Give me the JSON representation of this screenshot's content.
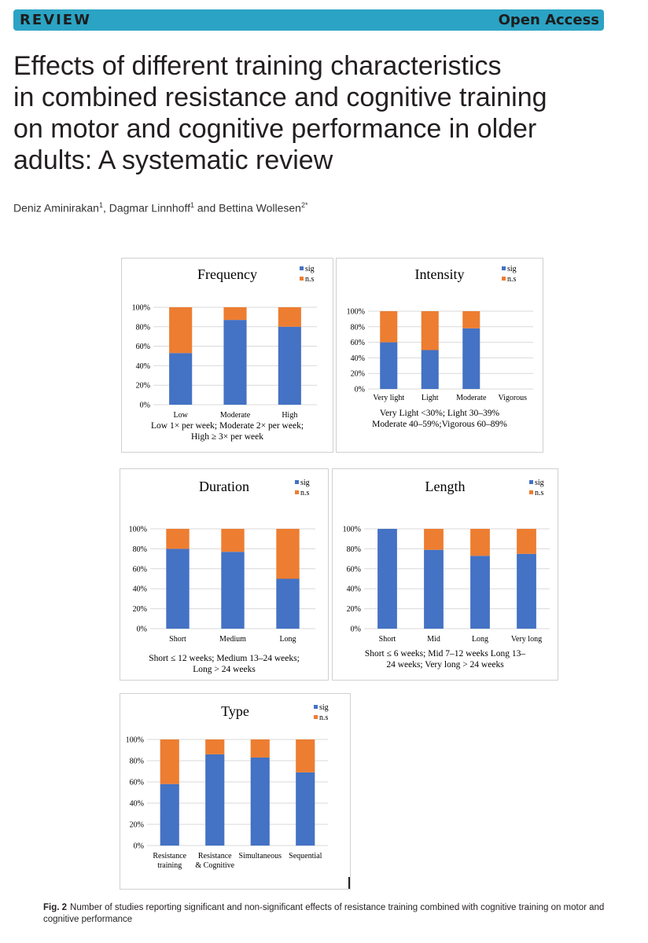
{
  "banner": {
    "label": "REVIEW",
    "access": "Open Access"
  },
  "title_lines": [
    "Effects of different training characteristics",
    "in combined resistance and cognitive training",
    "on motor and cognitive performance in older",
    "adults: A systematic review"
  ],
  "authors": {
    "a1": "Deniz Aminirakan",
    "a1_sup": "1",
    "sep1": ", ",
    "a2": "Dagmar Linnhoff",
    "a2_sup": "1",
    "sep2": " and ",
    "a3": "Bettina Wollesen",
    "a3_sup": "2*"
  },
  "colors": {
    "sig": "#4472c4",
    "ns": "#ed7d31",
    "banner": "#2ba3c4"
  },
  "caption": {
    "label": "Fig. 2",
    "text": "Number of studies reporting significant and non-significant effects of resistance training combined with cognitive training on motor and cognitive performance"
  },
  "chart_data": [
    {
      "type": "bar",
      "stacked": true,
      "title": "Frequency",
      "categories": [
        "Low",
        "Moderate",
        "High"
      ],
      "series": [
        {
          "name": "sig",
          "values": [
            53,
            87,
            80
          ]
        },
        {
          "name": "n.s",
          "values": [
            47,
            13,
            20
          ]
        }
      ],
      "yticks": [
        "0%",
        "20%",
        "40%",
        "60%",
        "80%",
        "100%"
      ],
      "ylim": [
        0,
        100
      ],
      "legend": [
        "sig",
        "n.s"
      ],
      "note": [
        "Low 1× per week; Moderate 2× per week;",
        "High ≥ 3× per week"
      ]
    },
    {
      "type": "bar",
      "stacked": true,
      "title": "Intensity",
      "categories": [
        "Very light",
        "Light",
        "Moderate",
        "Vigorous"
      ],
      "series": [
        {
          "name": "sig",
          "values": [
            60,
            50,
            78,
            0
          ]
        },
        {
          "name": "n.s",
          "values": [
            40,
            50,
            22,
            0
          ]
        }
      ],
      "yticks": [
        "0%",
        "20%",
        "40%",
        "60%",
        "80%",
        "100%"
      ],
      "ylim": [
        0,
        100
      ],
      "legend": [
        "sig",
        "n.s"
      ],
      "note": [
        "Very Light <30%; Light 30–39%",
        "Moderate 40–59%;Vigorous 60–89%"
      ]
    },
    {
      "type": "bar",
      "stacked": true,
      "title": "Duration",
      "categories": [
        "Short",
        "Medium",
        "Long"
      ],
      "series": [
        {
          "name": "sig",
          "values": [
            80,
            77,
            50
          ]
        },
        {
          "name": "n.s",
          "values": [
            20,
            23,
            50
          ]
        }
      ],
      "yticks": [
        "0%",
        "20%",
        "40%",
        "60%",
        "80%",
        "100%"
      ],
      "ylim": [
        0,
        100
      ],
      "legend": [
        "sig",
        "n.s"
      ],
      "note": [
        "Short ≤ 12 weeks; Medium 13–24 weeks;",
        "Long > 24 weeks"
      ]
    },
    {
      "type": "bar",
      "stacked": true,
      "title": "Length",
      "categories": [
        "Short",
        "Mid",
        "Long",
        "Very long"
      ],
      "series": [
        {
          "name": "sig",
          "values": [
            100,
            79,
            73,
            75
          ]
        },
        {
          "name": "n.s",
          "values": [
            0,
            21,
            27,
            25
          ]
        }
      ],
      "yticks": [
        "0%",
        "20%",
        "40%",
        "60%",
        "80%",
        "100%"
      ],
      "ylim": [
        0,
        100
      ],
      "legend": [
        "sig",
        "n.s"
      ],
      "note": [
        "Short ≤ 6 weeks; Mid 7–12 weeks Long 13–",
        "24 weeks; Very long > 24 weeks"
      ]
    },
    {
      "type": "bar",
      "stacked": true,
      "title": "Type",
      "categories": [
        [
          "Resistance",
          "training"
        ],
        [
          "Resistance",
          "& Cognitive"
        ],
        [
          "Simultaneous"
        ],
        [
          "Sequential"
        ]
      ],
      "series": [
        {
          "name": "sig",
          "values": [
            58,
            86,
            83,
            69
          ]
        },
        {
          "name": "n.s",
          "values": [
            42,
            14,
            17,
            31
          ]
        }
      ],
      "yticks": [
        "0%",
        "20%",
        "40%",
        "60%",
        "80%",
        "100%"
      ],
      "ylim": [
        0,
        100
      ],
      "legend": [
        "sig",
        "n.s"
      ],
      "note": []
    }
  ]
}
